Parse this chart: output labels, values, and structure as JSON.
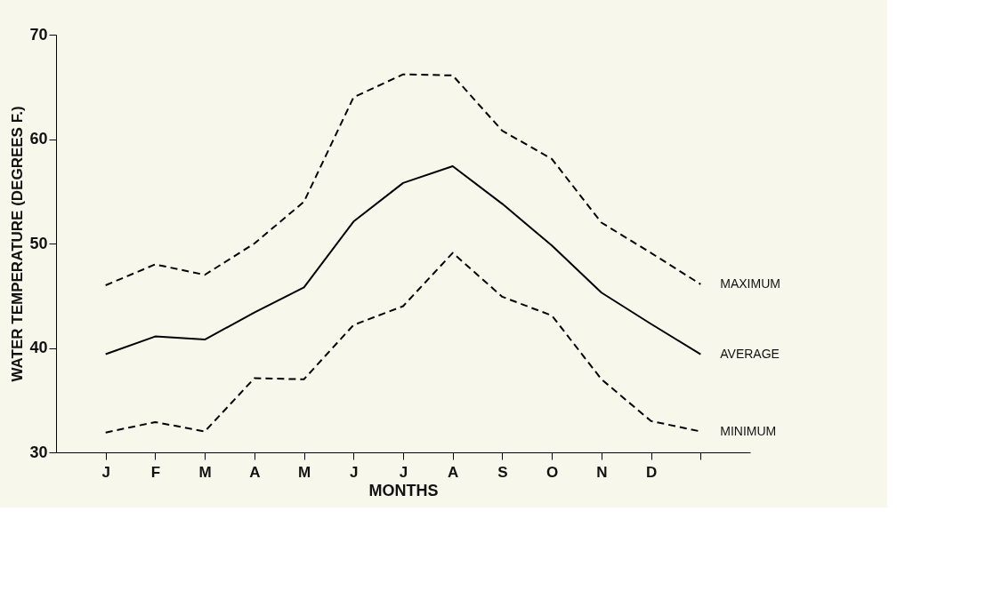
{
  "chart_data": {
    "type": "line",
    "xlabel": "MONTHS",
    "ylabel": "WATER TEMPERATURE (DEGREES F.)",
    "categories": [
      "J",
      "F",
      "M",
      "A",
      "M",
      "J",
      "J",
      "A",
      "S",
      "O",
      "N",
      "D",
      null
    ],
    "ylim": [
      30,
      70
    ],
    "yticks": [
      30,
      40,
      50,
      60,
      70
    ],
    "grid": false,
    "marker": "none",
    "series": [
      {
        "name": "MAXIMUM",
        "color": "#000000",
        "line_style": "dashed",
        "values": [
          46,
          48,
          47,
          50,
          54,
          64,
          66.2,
          66.1,
          60.8,
          58.1,
          52,
          49.1,
          46.1
        ]
      },
      {
        "name": "AVERAGE",
        "color": "#000000",
        "line_style": "solid",
        "values": [
          39.4,
          41.1,
          40.8,
          43.4,
          45.8,
          52.1,
          55.8,
          57.4,
          53.8,
          49.8,
          45.3,
          42.3,
          39.4
        ]
      },
      {
        "name": "MINIMUM",
        "color": "#000000",
        "line_style": "dashed",
        "values": [
          31.9,
          32.9,
          32,
          37.1,
          37,
          42.2,
          44,
          49.1,
          44.9,
          43.1,
          37,
          33,
          32
        ]
      }
    ]
  }
}
